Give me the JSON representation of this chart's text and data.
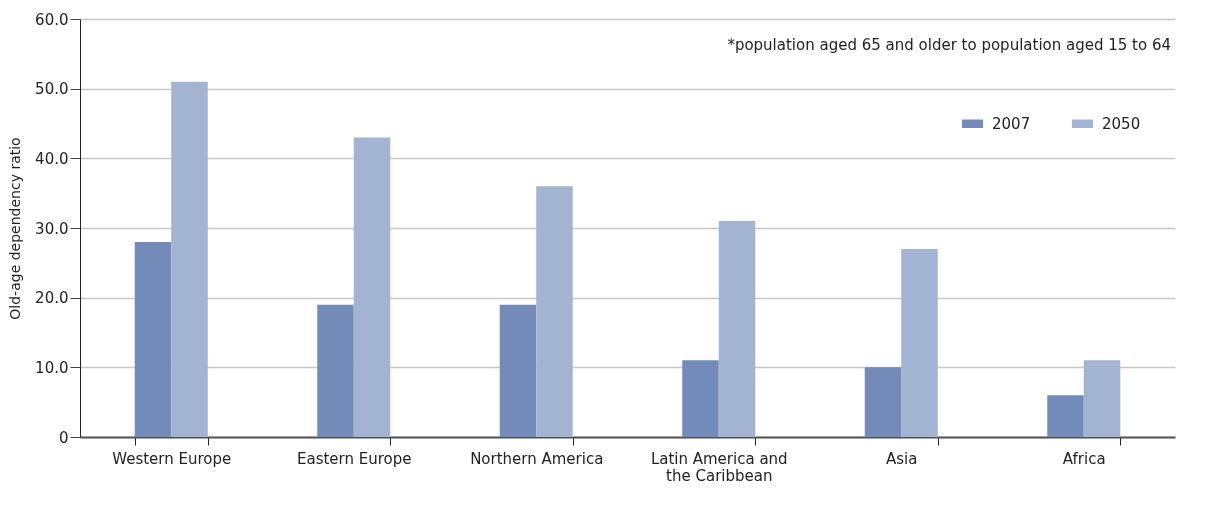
{
  "chart_data": {
    "type": "bar",
    "ylabel": "Old-age dependency ratio",
    "categories": [
      "Western Europe",
      "Eastern Europe",
      "Northern America",
      "Latin America and the Caribbean",
      "Asia",
      "Africa"
    ],
    "series": [
      {
        "name": "2007",
        "color": "#738bb9",
        "values": [
          28,
          19,
          19,
          11,
          10,
          6
        ]
      },
      {
        "name": "2050",
        "color": "#a3b3d2",
        "values": [
          51,
          43,
          36,
          31,
          27,
          11
        ]
      }
    ],
    "ylim": [
      0,
      60
    ],
    "yticks": [
      0,
      {
        "value": 10,
        "label": "10.0"
      },
      {
        "value": 20,
        "label": "20.0"
      },
      {
        "value": 30,
        "label": "30.0"
      },
      {
        "value": 40,
        "label": "40.0"
      },
      {
        "value": 50,
        "label": "50.0"
      },
      {
        "value": 60,
        "label": "60.0"
      }
    ],
    "grid": "y",
    "legend": "top right",
    "annotations": [
      "*population aged 65 and older to population aged 15 to 64"
    ]
  }
}
